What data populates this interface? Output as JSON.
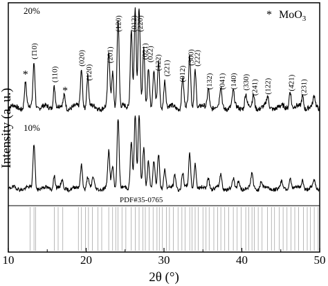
{
  "chart_data": {
    "type": "line",
    "xlabel": "2θ (°)",
    "ylabel": "Intensity (a. u.)",
    "xlim": [
      10,
      50
    ],
    "x_ticks": [
      "10",
      "20",
      "30",
      "40",
      "50"
    ],
    "legend": {
      "symbol": "*",
      "label": "MoO3",
      "position": "top-right"
    },
    "reference_label": "PDF#35-0765",
    "series": [
      {
        "name": "20%",
        "peaks": [
          {
            "x": 12.2,
            "h": 0.25
          },
          {
            "x": 13.3,
            "h": 0.45
          },
          {
            "x": 15.9,
            "h": 0.22
          },
          {
            "x": 17.2,
            "h": 0.12
          },
          {
            "x": 19.4,
            "h": 0.38
          },
          {
            "x": 20.2,
            "h": 0.32
          },
          {
            "x": 22.9,
            "h": 0.55
          },
          {
            "x": 23.4,
            "h": 0.35
          },
          {
            "x": 24.1,
            "h": 0.9
          },
          {
            "x": 25.8,
            "h": 0.8
          },
          {
            "x": 26.3,
            "h": 1.0
          },
          {
            "x": 26.8,
            "h": 0.98
          },
          {
            "x": 27.4,
            "h": 0.6
          },
          {
            "x": 28.0,
            "h": 0.42
          },
          {
            "x": 28.7,
            "h": 0.36
          },
          {
            "x": 29.3,
            "h": 0.45
          },
          {
            "x": 30.1,
            "h": 0.28
          },
          {
            "x": 32.4,
            "h": 0.3
          },
          {
            "x": 33.3,
            "h": 0.52
          },
          {
            "x": 34.0,
            "h": 0.38
          },
          {
            "x": 35.7,
            "h": 0.2
          },
          {
            "x": 37.3,
            "h": 0.2
          },
          {
            "x": 38.9,
            "h": 0.15
          },
          {
            "x": 40.5,
            "h": 0.14
          },
          {
            "x": 41.5,
            "h": 0.12
          },
          {
            "x": 43.3,
            "h": 0.1
          },
          {
            "x": 46.2,
            "h": 0.18
          },
          {
            "x": 47.8,
            "h": 0.12
          },
          {
            "x": 49.3,
            "h": 0.1
          }
        ],
        "peak_labels": [
          {
            "x": 13.3,
            "text": "(1̄10)"
          },
          {
            "x": 15.9,
            "text": "(110)"
          },
          {
            "x": 19.4,
            "text": "(020)"
          },
          {
            "x": 20.3,
            "text": "(120)"
          },
          {
            "x": 23.0,
            "text": "(2̄01)"
          },
          {
            "x": 24.1,
            "text": "(120)"
          },
          {
            "x": 26.1,
            "text": "(012)"
          },
          {
            "x": 26.9,
            "text": "(2̄20)"
          },
          {
            "x": 27.5,
            "text": "(021)"
          },
          {
            "x": 28.2,
            "text": "(022)"
          },
          {
            "x": 29.2,
            "text": "(122)"
          },
          {
            "x": 30.3,
            "text": "(221)"
          },
          {
            "x": 32.3,
            "text": "(012)"
          },
          {
            "x": 33.4,
            "text": "(300)"
          },
          {
            "x": 34.2,
            "text": "(222)"
          },
          {
            "x": 35.8,
            "text": "(132)"
          },
          {
            "x": 37.4,
            "text": "(041)"
          },
          {
            "x": 38.9,
            "text": "(140)"
          },
          {
            "x": 40.5,
            "text": "(330)"
          },
          {
            "x": 41.6,
            "text": "(241)"
          },
          {
            "x": 43.3,
            "text": "(122)"
          },
          {
            "x": 46.3,
            "text": "(4̄21)"
          },
          {
            "x": 47.9,
            "text": "(231)"
          }
        ],
        "asterisk_peaks": [
          12.2,
          17.3
        ]
      },
      {
        "name": "10%",
        "peaks": [
          {
            "x": 13.3,
            "h": 0.6
          },
          {
            "x": 15.9,
            "h": 0.18
          },
          {
            "x": 16.9,
            "h": 0.1
          },
          {
            "x": 19.4,
            "h": 0.32
          },
          {
            "x": 20.2,
            "h": 0.16
          },
          {
            "x": 20.9,
            "h": 0.14
          },
          {
            "x": 22.9,
            "h": 0.48
          },
          {
            "x": 23.4,
            "h": 0.3
          },
          {
            "x": 24.1,
            "h": 0.95
          },
          {
            "x": 25.8,
            "h": 0.65
          },
          {
            "x": 26.3,
            "h": 1.0
          },
          {
            "x": 26.8,
            "h": 0.98
          },
          {
            "x": 27.4,
            "h": 0.55
          },
          {
            "x": 28.0,
            "h": 0.38
          },
          {
            "x": 28.7,
            "h": 0.36
          },
          {
            "x": 29.3,
            "h": 0.45
          },
          {
            "x": 30.1,
            "h": 0.28
          },
          {
            "x": 31.4,
            "h": 0.18
          },
          {
            "x": 32.4,
            "h": 0.2
          },
          {
            "x": 33.3,
            "h": 0.45
          },
          {
            "x": 34.0,
            "h": 0.35
          },
          {
            "x": 35.7,
            "h": 0.15
          },
          {
            "x": 37.3,
            "h": 0.18
          },
          {
            "x": 38.9,
            "h": 0.12
          },
          {
            "x": 39.6,
            "h": 0.1
          },
          {
            "x": 41.3,
            "h": 0.2
          },
          {
            "x": 42.5,
            "h": 0.1
          },
          {
            "x": 45.1,
            "h": 0.08
          },
          {
            "x": 46.2,
            "h": 0.15
          },
          {
            "x": 47.8,
            "h": 0.12
          },
          {
            "x": 49.3,
            "h": 0.1
          }
        ]
      }
    ],
    "reference_lines": [
      12.8,
      13.3,
      13.5,
      15.9,
      16.4,
      17.0,
      19.0,
      19.4,
      19.9,
      20.3,
      20.8,
      21.5,
      22.0,
      22.9,
      23.4,
      23.8,
      24.1,
      24.6,
      25.1,
      25.8,
      26.3,
      26.8,
      27.3,
      27.6,
      28.1,
      28.6,
      29.1,
      29.4,
      29.8,
      30.3,
      30.7,
      31.2,
      31.8,
      32.3,
      32.7,
      33.3,
      33.6,
      34.0,
      34.4,
      35.0,
      35.4,
      35.8,
      36.4,
      36.9,
      37.3,
      37.8,
      38.3,
      38.9,
      39.4,
      39.9,
      40.5,
      40.9,
      41.3,
      41.6,
      42.1,
      42.6,
      43.3,
      43.8,
      44.2,
      44.8,
      45.3,
      45.8,
      46.3,
      46.8,
      47.3,
      47.9,
      48.4,
      48.8,
      49.3,
      49.8
    ]
  }
}
